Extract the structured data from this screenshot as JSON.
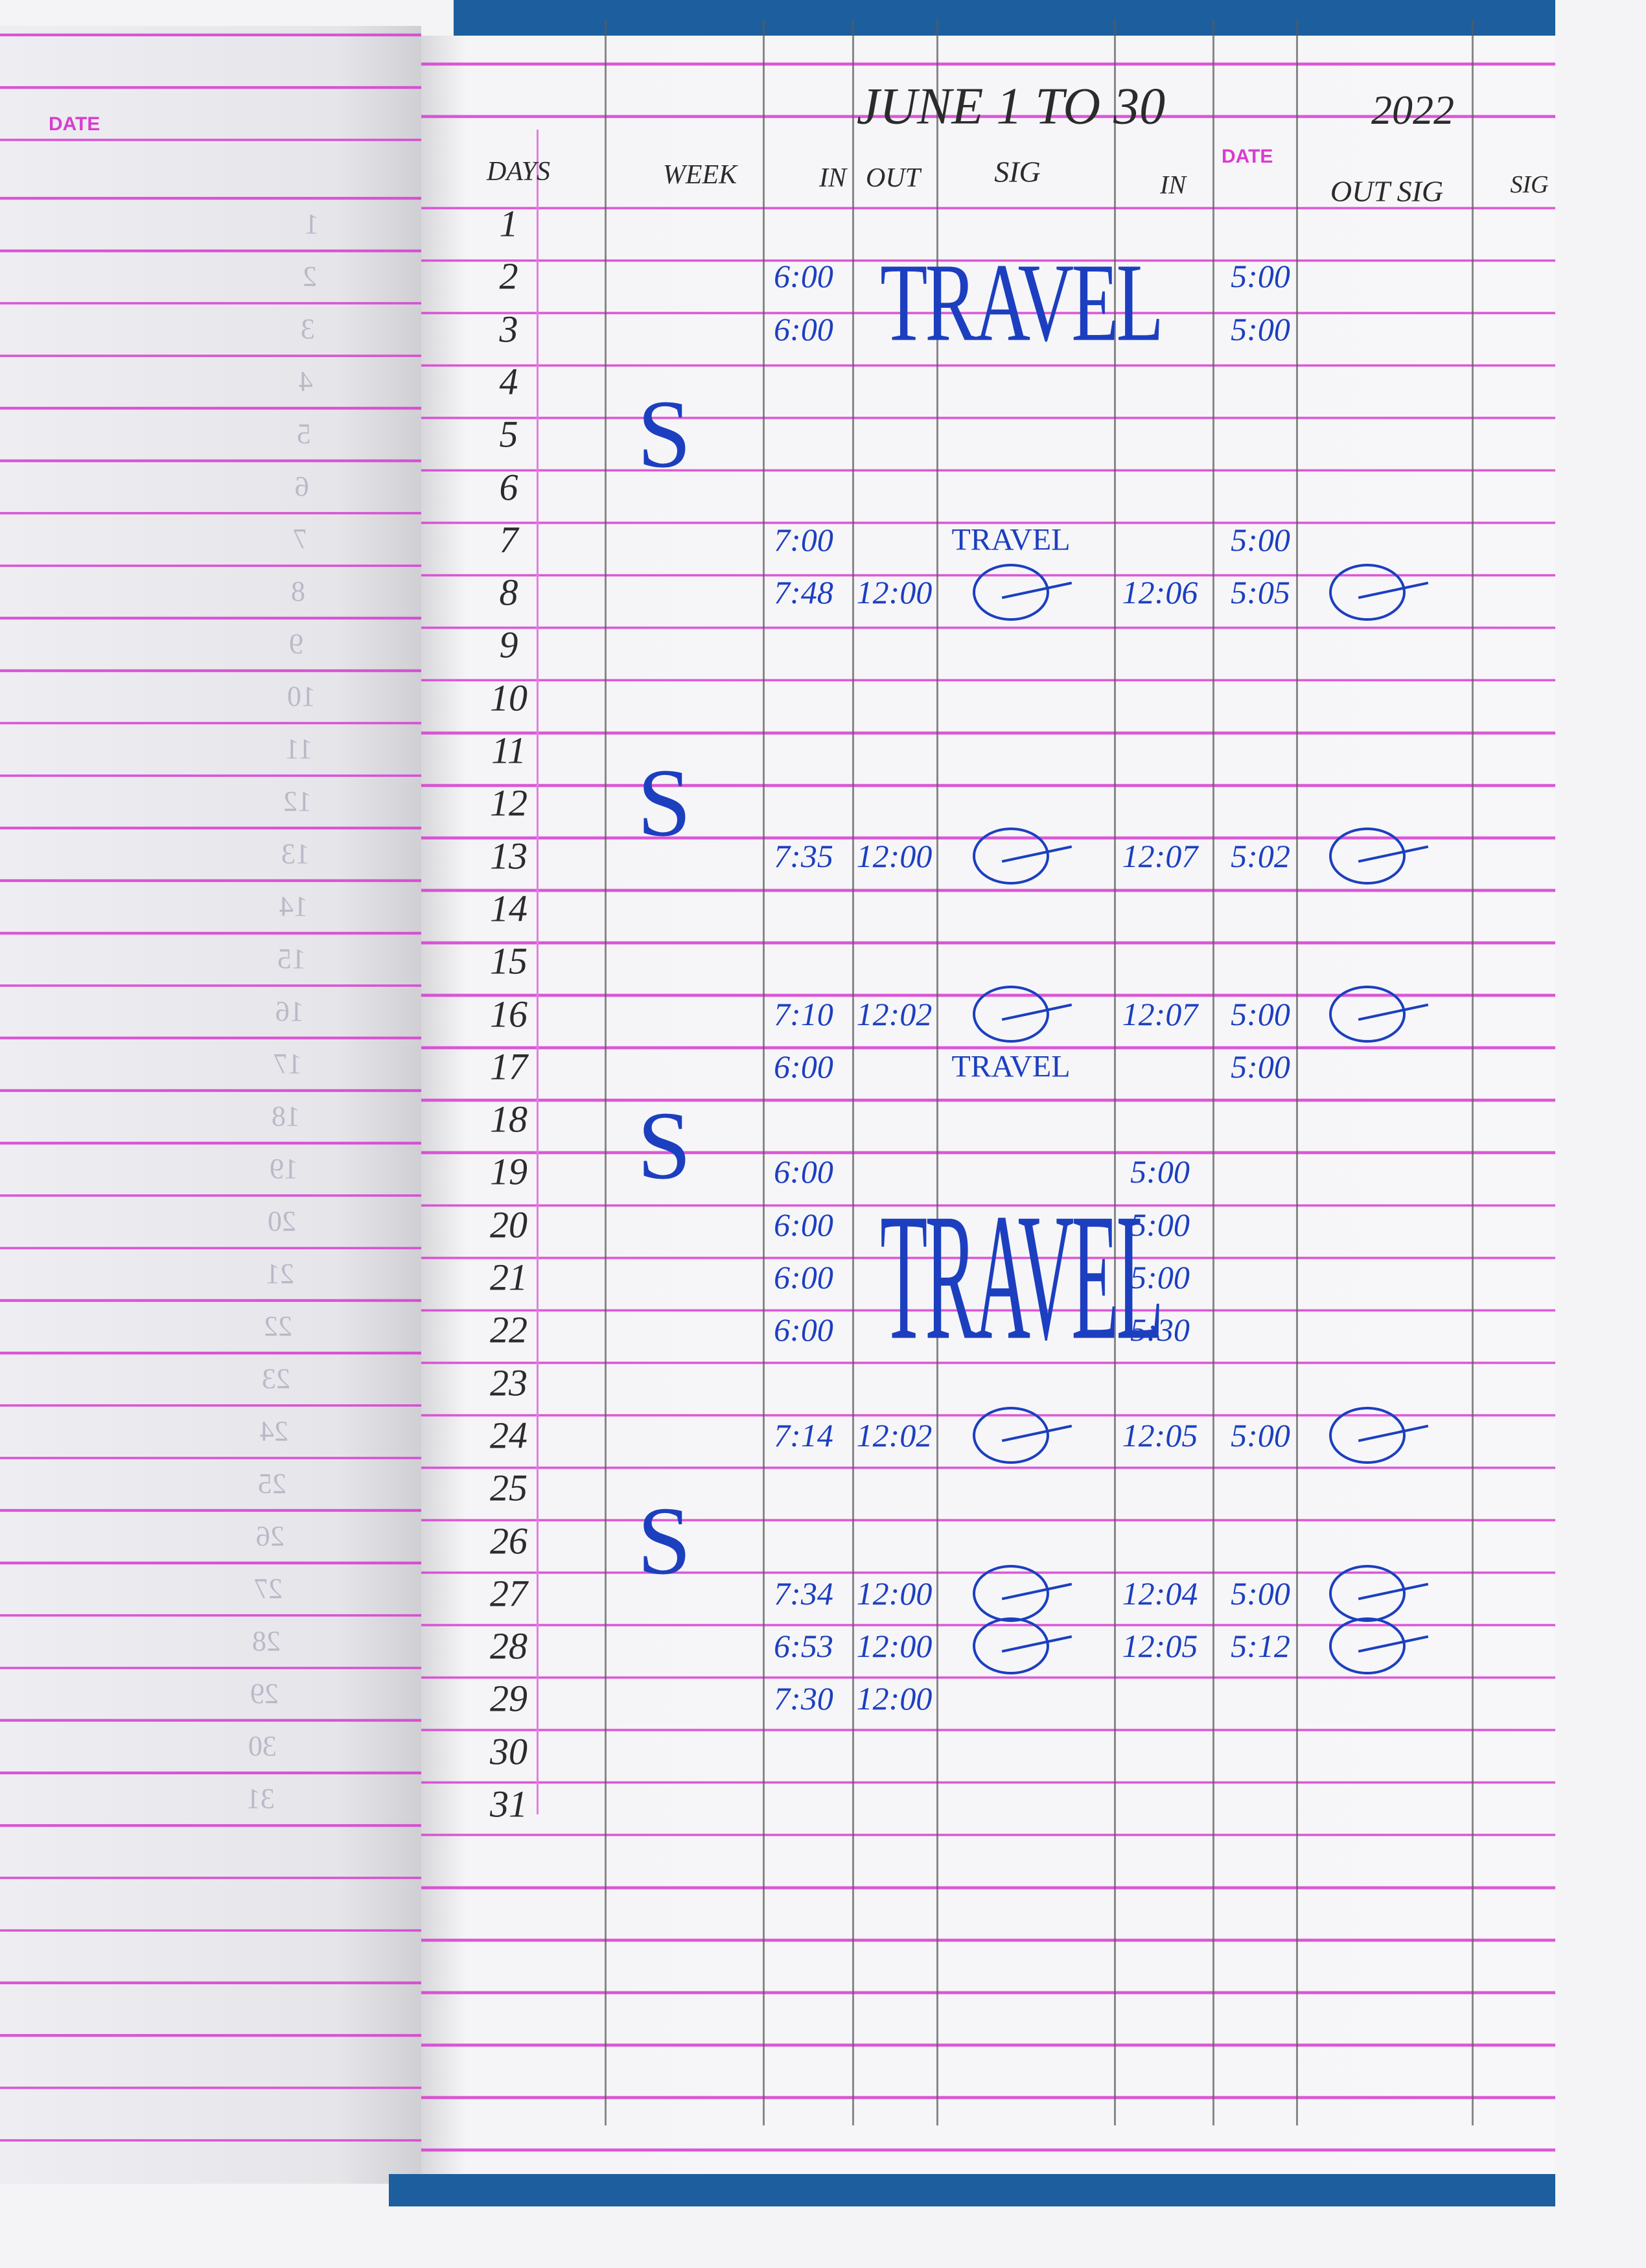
{
  "colors": {
    "ink_blue": "#1c3fc0",
    "ruling_pink": "#d63ad0",
    "pencil": "#2b2b2b",
    "cover": "#1d5f9e"
  },
  "left_page": {
    "printed_date_label": "DATE",
    "ghost_numbers": [
      "1",
      "2",
      "3",
      "4",
      "5",
      "6",
      "7",
      "8",
      "9",
      "10",
      "11",
      "12",
      "13",
      "14",
      "15",
      "16",
      "17",
      "18",
      "19",
      "20",
      "21",
      "22",
      "23",
      "24",
      "25",
      "26",
      "27",
      "28",
      "29",
      "30",
      "31"
    ]
  },
  "header": {
    "title": "JUNE 1 TO 30",
    "year": "2022",
    "printed_date_label": "DATE",
    "columns": {
      "days": "DAYS",
      "week": "WEEK",
      "in": "IN",
      "out": "OUT",
      "sig": "SIG",
      "in2": "IN",
      "out_sig": "OUT SIG",
      "sig2": "SIG"
    }
  },
  "days": [
    "1",
    "2",
    "3",
    "4",
    "5",
    "6",
    "7",
    "8",
    "9",
    "10",
    "11",
    "12",
    "13",
    "14",
    "15",
    "16",
    "17",
    "18",
    "19",
    "20",
    "21",
    "22",
    "23",
    "24",
    "25",
    "26",
    "27",
    "28",
    "29",
    "30",
    "31"
  ],
  "week_marks": [
    {
      "day": 5,
      "text": "S"
    },
    {
      "day": 12,
      "text": "S"
    },
    {
      "day": 18.5,
      "text": "S"
    },
    {
      "day": 26,
      "text": "S"
    }
  ],
  "entries": [
    {
      "day": 2,
      "in": "6:00",
      "out2": "5:00"
    },
    {
      "day": 3,
      "in": "6:00",
      "out2": "5:00"
    },
    {
      "day": 7,
      "in": "7:00",
      "note": "TRAVEL",
      "out2": "5:00"
    },
    {
      "day": 8,
      "in": "7:48",
      "out": "12:00",
      "sig": true,
      "in2": "12:06",
      "out2": "5:05",
      "sig2": true
    },
    {
      "day": 13,
      "in": "7:35",
      "out": "12:00",
      "sig": true,
      "in2": "12:07",
      "out2": "5:02",
      "sig2": true
    },
    {
      "day": 16,
      "in": "7:10",
      "out": "12:02",
      "sig": true,
      "in2": "12:07",
      "out2": "5:00",
      "sig2": true
    },
    {
      "day": 17,
      "in": "6:00",
      "note": "TRAVEL",
      "out2": "5:00"
    },
    {
      "day": 19,
      "in": "6:00",
      "in2": "5:00"
    },
    {
      "day": 20,
      "in": "6:00",
      "in2": "5:00"
    },
    {
      "day": 21,
      "in": "6:00",
      "in2": "5:00"
    },
    {
      "day": 22,
      "in": "6:00",
      "in2": "5:30"
    },
    {
      "day": 24,
      "in": "7:14",
      "out": "12:02",
      "sig": true,
      "in2": "12:05",
      "out2": "5:00",
      "sig2": true
    },
    {
      "day": 27,
      "in": "7:34",
      "out": "12:00",
      "sig": true,
      "in2": "12:04",
      "out2": "5:00",
      "sig2": true
    },
    {
      "day": 28,
      "in": "6:53",
      "out": "12:00",
      "sig": true,
      "in2": "12:05",
      "out2": "5:12",
      "sig2": true
    },
    {
      "day": 29,
      "in": "7:30",
      "out": "12:00"
    }
  ],
  "travel_blocks": [
    {
      "from_day": 2,
      "to_day": 3,
      "text": "TRAVEL"
    },
    {
      "from_day": 20,
      "to_day": 22,
      "text": "TRAVEL"
    }
  ]
}
